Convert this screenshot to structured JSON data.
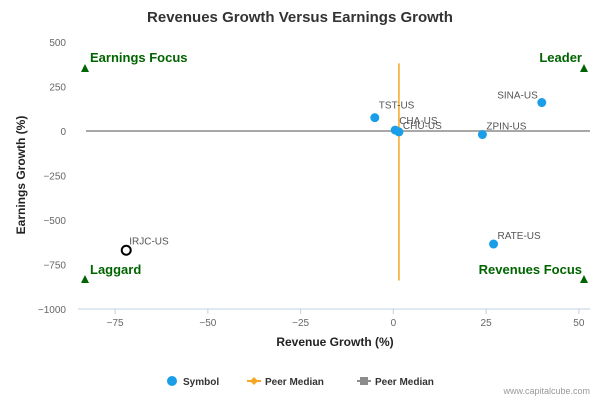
{
  "chart_data": {
    "type": "scatter",
    "title": "Revenues Growth Versus Earnings Growth",
    "xlabel": "Revenue Growth (%)",
    "ylabel": "Earnings Growth (%)",
    "xlim": [
      -85,
      53
    ],
    "ylim": [
      -1000,
      500
    ],
    "x_ticks": [
      -75,
      -50,
      -25,
      0,
      25,
      50
    ],
    "y_ticks": [
      500,
      250,
      0,
      -250,
      -500,
      -750,
      -1000
    ],
    "x_tick_labels": [
      "−75",
      "−50",
      "−25",
      "0",
      "25",
      "50"
    ],
    "y_tick_labels": [
      "500",
      "250",
      "0",
      "−250",
      "−500",
      "−750",
      "−1000"
    ],
    "grid": false,
    "series": [
      {
        "name": "Symbol",
        "color": "#1a9ee8",
        "points": [
          {
            "label": "TST-US",
            "x": -5,
            "y": 75
          },
          {
            "label": "CHA-US",
            "x": 0.5,
            "y": 5
          },
          {
            "label": "CHU-US",
            "x": 1.5,
            "y": -5
          },
          {
            "label": "ZPIN-US",
            "x": 24,
            "y": -20
          },
          {
            "label": "SINA-US",
            "x": 40,
            "y": 160
          },
          {
            "label": "RATE-US",
            "x": 27,
            "y": -635
          }
        ]
      },
      {
        "name": "Peer Median",
        "color": "#f5a623",
        "type": "vertical_line",
        "x": 1.5
      },
      {
        "name": "Peer Median",
        "color": "#8c8c8c",
        "type": "horizontal_line",
        "y": 0
      }
    ],
    "highlighted_point": {
      "label": "IRJC-US",
      "x": -72,
      "y": -670
    },
    "quadrant_labels": {
      "top_left": "Earnings Focus",
      "top_right": "Leader",
      "bottom_left": "Laggard",
      "bottom_right": "Revenues Focus"
    },
    "legend": {
      "placement": "bottom-center",
      "items": [
        {
          "label": "Symbol",
          "color": "#1a9ee8",
          "marker": "circle"
        },
        {
          "label": "Peer Median",
          "color": "#f5a623",
          "marker": "line-diamond"
        },
        {
          "label": "Peer Median",
          "color": "#8c8c8c",
          "marker": "line-square"
        }
      ]
    },
    "credit": "www.capitalcube.com",
    "quadrant_color": "#006400"
  }
}
